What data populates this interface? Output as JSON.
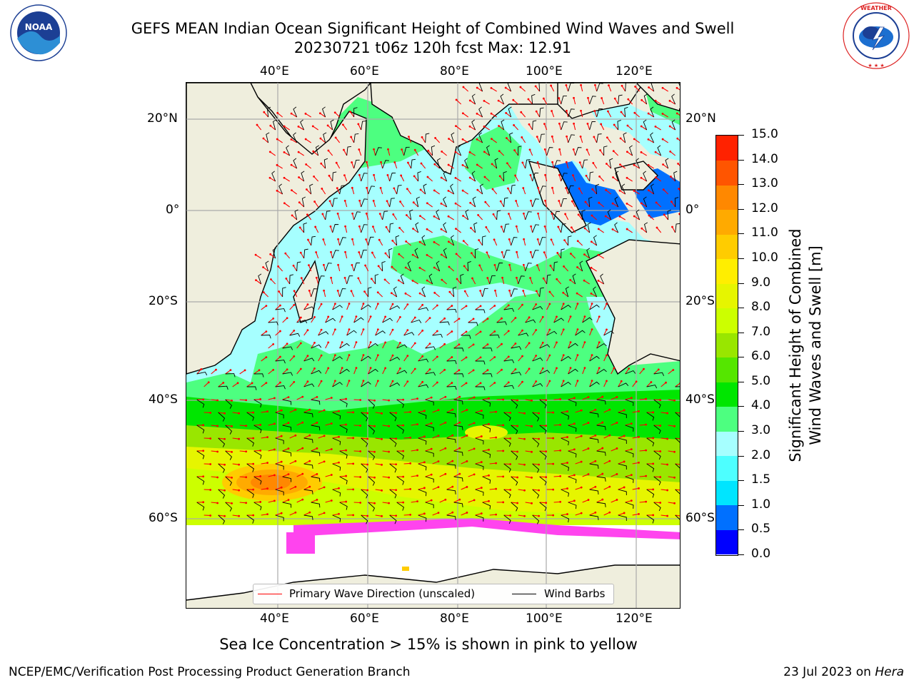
{
  "header": {
    "title_line1": "GEFS MEAN Indian Ocean Significant Height of Combined Wind Waves and Swell",
    "title_line2": "20230721 t06z 120h fcst   Max: 12.91"
  },
  "logos": {
    "left": "noaa-logo",
    "right": "national-weather-service-logo"
  },
  "axes": {
    "lon_labels": [
      "40°E",
      "60°E",
      "80°E",
      "100°E",
      "120°E"
    ],
    "lat_labels": [
      "20°N",
      "0°",
      "20°S",
      "40°S",
      "60°S"
    ]
  },
  "legend": {
    "wave_label": "Primary Wave Direction (unscaled)",
    "wind_label": "Wind Barbs",
    "wave_color": "#ff0000",
    "wind_color": "#000000"
  },
  "colorbar": {
    "label_line1": "Significant Height of Combined",
    "label_line2": "Wind Waves and Swell [m]",
    "ticks": [
      "0.0",
      "0.5",
      "1.0",
      "1.5",
      "2.0",
      "3.0",
      "4.0",
      "5.0",
      "6.0",
      "7.0",
      "8.0",
      "9.0",
      "10.0",
      "11.0",
      "12.0",
      "13.0",
      "14.0",
      "15.0"
    ],
    "colors": [
      "#0000ff",
      "#0070ff",
      "#00e5ff",
      "#4dffff",
      "#a6ffff",
      "#4dff80",
      "#00e600",
      "#55e600",
      "#99e600",
      "#ccff00",
      "#e6f500",
      "#ffee00",
      "#ffcc00",
      "#ffaa00",
      "#ff8800",
      "#ff5500",
      "#ff2200"
    ]
  },
  "footer": {
    "ice_note": "Sea Ice Concentration > 15% is shown in pink to yellow",
    "credit": "NCEP/EMC/Verification Post Processing Product Generation Branch",
    "date": "23 Jul 2023 on",
    "host": "Hera"
  }
}
